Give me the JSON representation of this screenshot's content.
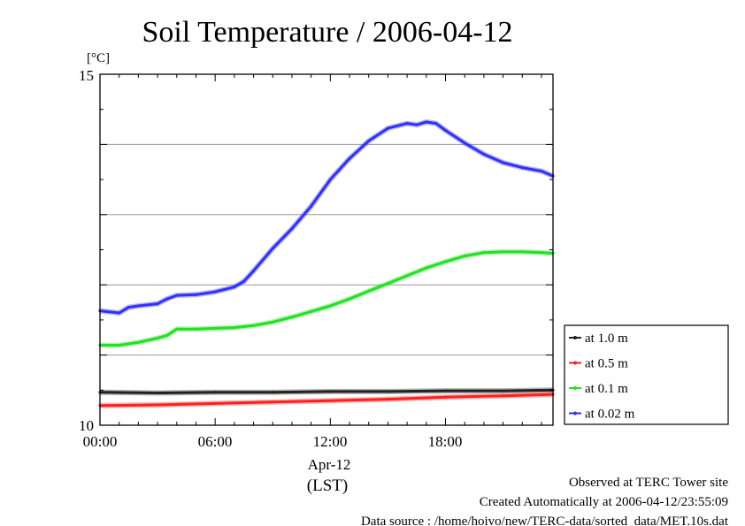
{
  "chart_data": {
    "type": "line",
    "title": "Soil Temperature / 2006-04-12",
    "ylabel": "[°C]",
    "ylim": [
      10,
      15
    ],
    "yticks": [
      "15",
      "10"
    ],
    "xlim": [
      0,
      23.6
    ],
    "xticks": [
      {
        "value": 0,
        "label": "00:00"
      },
      {
        "value": 6,
        "label": "06:00"
      },
      {
        "value": 12,
        "label": "12:00"
      },
      {
        "value": 18,
        "label": "18:00"
      }
    ],
    "xlabel_date": "Apr-12",
    "xlabel_unit": "(LST)",
    "grid": true,
    "legend_position": "right",
    "series": [
      {
        "name": "at 1.0 m",
        "color": "#222222",
        "x": [
          0,
          3,
          6,
          9,
          12,
          15,
          18,
          21,
          23.6
        ],
        "y": [
          10.47,
          10.46,
          10.47,
          10.47,
          10.48,
          10.48,
          10.49,
          10.49,
          10.5
        ]
      },
      {
        "name": "at 0.5 m",
        "color": "#ff2020",
        "x": [
          0,
          3,
          6,
          9,
          12,
          15,
          18,
          21,
          23.6
        ],
        "y": [
          10.28,
          10.29,
          10.31,
          10.33,
          10.35,
          10.37,
          10.4,
          10.42,
          10.44
        ]
      },
      {
        "name": "at 0.1 m",
        "color": "#22e022",
        "x": [
          0,
          1,
          2,
          3,
          3.5,
          4,
          5,
          6,
          7,
          8,
          9,
          10,
          11,
          12,
          13,
          14,
          15,
          16,
          17,
          18,
          19,
          20,
          21,
          22,
          23,
          23.6
        ],
        "y": [
          11.14,
          11.14,
          11.18,
          11.24,
          11.28,
          11.37,
          11.37,
          11.38,
          11.39,
          11.42,
          11.47,
          11.54,
          11.62,
          11.7,
          11.8,
          11.91,
          12.02,
          12.13,
          12.24,
          12.33,
          12.41,
          12.46,
          12.47,
          12.47,
          12.46,
          12.45
        ]
      },
      {
        "name": "at 0.02 m",
        "color": "#3030ff",
        "x": [
          0,
          1,
          1.5,
          2,
          3,
          3.5,
          4,
          5,
          6,
          7,
          7.5,
          8,
          9,
          10,
          11,
          12,
          13,
          14,
          15,
          16,
          16.5,
          17,
          17.5,
          18,
          19,
          20,
          21,
          22,
          23,
          23.6
        ],
        "y": [
          11.63,
          11.6,
          11.68,
          11.7,
          11.73,
          11.8,
          11.85,
          11.86,
          11.9,
          11.97,
          12.05,
          12.2,
          12.52,
          12.8,
          13.12,
          13.5,
          13.8,
          14.05,
          14.23,
          14.3,
          14.28,
          14.32,
          14.3,
          14.2,
          14.02,
          13.86,
          13.74,
          13.67,
          13.62,
          13.55
        ]
      }
    ]
  },
  "footer": {
    "line1": "Observed at TERC Tower site",
    "line2": "Created Automatically at 2006-04-12/23:55:09",
    "line3": "Data source : /home/hoivo/new/TERC-data/sorted_data/MET.10s.dat"
  }
}
